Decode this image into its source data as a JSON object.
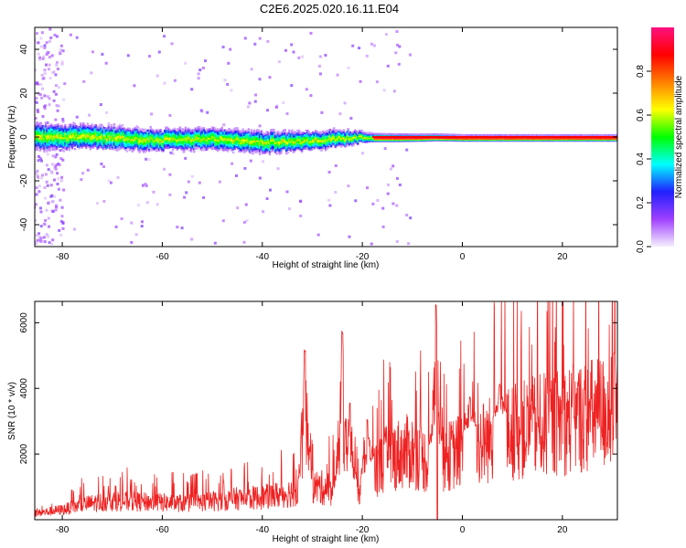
{
  "title": "C2E6.2025.020.16.11.E04",
  "chart_data": [
    {
      "type": "heatmap",
      "xlabel": "Height of straight line (km)",
      "ylabel": "Frequency (Hz)",
      "xlim": [
        -85.5,
        31
      ],
      "ylim": [
        -50,
        50
      ],
      "x_ticks": [
        -80,
        -60,
        -40,
        -20,
        0,
        20
      ],
      "y_ticks": [
        -40,
        -20,
        0,
        20,
        40
      ],
      "colorbar": {
        "label": "Normalized spectral amplitude",
        "range": [
          0,
          1
        ],
        "ticks": [
          "0.0",
          "0.2",
          "0.4",
          "0.6",
          "0.8"
        ],
        "tick_values": [
          0,
          0.2,
          0.4,
          0.6,
          0.8
        ],
        "colors": [
          "#f5f0ff",
          "#a040ff",
          "#2020ff",
          "#00ffff",
          "#00ff00",
          "#ffff00",
          "#ff8000",
          "#ff0000",
          "#ff1080"
        ]
      },
      "band_center_hz": [
        {
          "x": -85,
          "y": 0.3
        },
        {
          "x": -80,
          "y": 0.5
        },
        {
          "x": -75,
          "y": 0.6
        },
        {
          "x": -70,
          "y": 0.2
        },
        {
          "x": -65,
          "y": -0.6
        },
        {
          "x": -60,
          "y": -0.9
        },
        {
          "x": -55,
          "y": -0.6
        },
        {
          "x": -50,
          "y": -0.4
        },
        {
          "x": -45,
          "y": -1.3
        },
        {
          "x": -40,
          "y": -2.0
        },
        {
          "x": -35,
          "y": -1.6
        },
        {
          "x": -30,
          "y": -1.1
        },
        {
          "x": -25,
          "y": -0.2
        },
        {
          "x": -20,
          "y": 0.2
        },
        {
          "x": -15,
          "y": 0.1
        },
        {
          "x": -10,
          "y": 0.1
        },
        {
          "x": -5,
          "y": 0.3
        },
        {
          "x": 0,
          "y": 0.0
        },
        {
          "x": 10,
          "y": 0.0
        },
        {
          "x": 20,
          "y": 0.0
        },
        {
          "x": 31,
          "y": 0.0
        }
      ],
      "band_halfwidth_hz": [
        {
          "x": -85,
          "y": 6
        },
        {
          "x": -60,
          "y": 5
        },
        {
          "x": -40,
          "y": 5
        },
        {
          "x": -25,
          "y": 4
        },
        {
          "x": -18,
          "y": 2
        },
        {
          "x": 0,
          "y": 1.5
        },
        {
          "x": 31,
          "y": 1.5
        }
      ]
    },
    {
      "type": "line",
      "xlabel": "Height of straight line (km)",
      "ylabel": "SNR (10 * v/v)",
      "xlim": [
        -85.5,
        31
      ],
      "ylim": [
        0,
        6650
      ],
      "x_ticks": [
        -80,
        -60,
        -40,
        -20,
        0,
        20
      ],
      "y_ticks": [
        2000,
        4000,
        6000
      ],
      "color": "#ee2222",
      "envelope": [
        {
          "x": -85,
          "y": 250
        },
        {
          "x": -80,
          "y": 380
        },
        {
          "x": -75,
          "y": 600
        },
        {
          "x": -70,
          "y": 720
        },
        {
          "x": -65,
          "y": 680
        },
        {
          "x": -60,
          "y": 650
        },
        {
          "x": -55,
          "y": 620
        },
        {
          "x": -50,
          "y": 700
        },
        {
          "x": -45,
          "y": 800
        },
        {
          "x": -40,
          "y": 850
        },
        {
          "x": -35,
          "y": 1000
        },
        {
          "x": -30,
          "y": 1250
        },
        {
          "x": -25,
          "y": 1150
        },
        {
          "x": -22,
          "y": 1100
        },
        {
          "x": -20,
          "y": 1250
        },
        {
          "x": -18,
          "y": 1800
        },
        {
          "x": -15,
          "y": 2350
        },
        {
          "x": -12,
          "y": 2550
        },
        {
          "x": -10,
          "y": 2600
        },
        {
          "x": -8,
          "y": 2350
        },
        {
          "x": -6,
          "y": 2050
        },
        {
          "x": -4,
          "y": 2250
        },
        {
          "x": -2,
          "y": 2500
        },
        {
          "x": 0,
          "y": 2650
        },
        {
          "x": 3,
          "y": 2850
        },
        {
          "x": 6,
          "y": 3100
        },
        {
          "x": 10,
          "y": 3300
        },
        {
          "x": 15,
          "y": 3550
        },
        {
          "x": 20,
          "y": 3750
        },
        {
          "x": 25,
          "y": 3950
        },
        {
          "x": 31,
          "y": 4150
        }
      ],
      "peaks": [
        {
          "x": -31.5,
          "y": 5200
        },
        {
          "x": -24,
          "y": 5800
        },
        {
          "x": -22.5,
          "y": 3600
        },
        {
          "x": -19,
          "y": 3100
        },
        {
          "x": -5.3,
          "y": 6650
        },
        {
          "x": 1.5,
          "y": 3800
        },
        {
          "x": 7.5,
          "y": 4150
        }
      ],
      "dips": [
        {
          "x": -5.0,
          "y": 0
        }
      ]
    }
  ]
}
